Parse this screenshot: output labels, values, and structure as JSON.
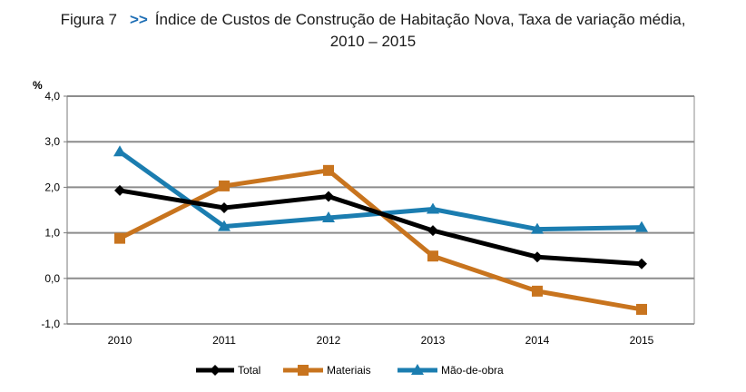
{
  "title": {
    "figure_label": "Figura 7",
    "arrow": ">>",
    "line1": "Índice de Custos de Construção de Habitação Nova, Taxa de variação média,",
    "line2": "2010 – 2015"
  },
  "chart_data": {
    "type": "line",
    "title": "Índice de Custos de Construção de Habitação Nova, Taxa de variação média, 2010 – 2015",
    "ylabel": "%",
    "xlabel": "",
    "ylim": [
      -1.0,
      4.0
    ],
    "yticks": [
      "4,0",
      "3,0",
      "2,0",
      "1,0",
      "0,0",
      "-1,0"
    ],
    "ytick_values": [
      4,
      3,
      2,
      1,
      0,
      -1
    ],
    "categories": [
      "2010",
      "2011",
      "2012",
      "2013",
      "2014",
      "2015"
    ],
    "grid": true,
    "legend_position": "bottom",
    "series": [
      {
        "name": "Total",
        "color": "#000000",
        "marker": "diamond",
        "values": [
          1.93,
          1.55,
          1.8,
          1.05,
          0.47,
          0.32
        ]
      },
      {
        "name": "Materiais",
        "color": "#c8741e",
        "marker": "square",
        "values": [
          0.88,
          2.03,
          2.37,
          0.49,
          -0.28,
          -0.68
        ]
      },
      {
        "name": "Mão-de-obra",
        "color": "#1b7db0",
        "marker": "triangle",
        "values": [
          2.78,
          1.14,
          1.33,
          1.52,
          1.08,
          1.12
        ]
      }
    ]
  }
}
